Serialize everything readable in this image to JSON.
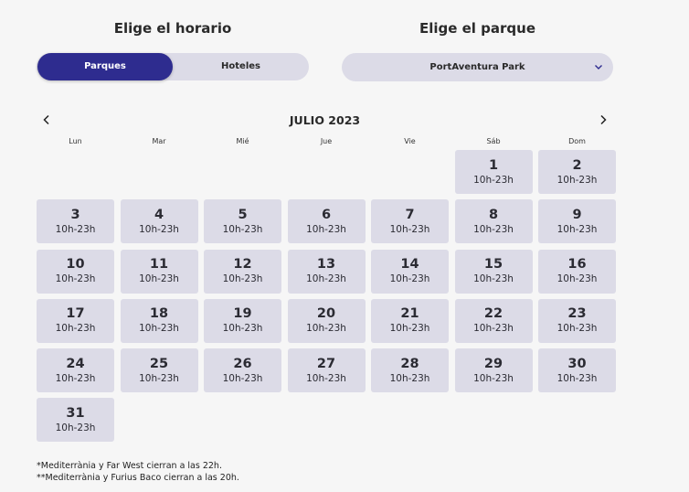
{
  "schedule_heading": "Elige el horario",
  "park_heading": "Elige el parque",
  "toggle": {
    "parques": "Parques",
    "hoteles": "Hoteles",
    "active": "parques"
  },
  "park_select": {
    "value": "PortAventura Park"
  },
  "colors": {
    "accent": "#2e2c8f",
    "cell": "#dcdbe7",
    "background": "#f6f6f6"
  },
  "calendar": {
    "month": "JULIO 2023",
    "weekdays": [
      "Lun",
      "Mar",
      "Mié",
      "Jue",
      "Vie",
      "Sáb",
      "Dom"
    ],
    "first_weekday_index": 5,
    "days": [
      {
        "day": "1",
        "hours": "10h-23h"
      },
      {
        "day": "2",
        "hours": "10h-23h"
      },
      {
        "day": "3",
        "hours": "10h-23h"
      },
      {
        "day": "4",
        "hours": "10h-23h"
      },
      {
        "day": "5",
        "hours": "10h-23h"
      },
      {
        "day": "6",
        "hours": "10h-23h"
      },
      {
        "day": "7",
        "hours": "10h-23h"
      },
      {
        "day": "8",
        "hours": "10h-23h"
      },
      {
        "day": "9",
        "hours": "10h-23h"
      },
      {
        "day": "10",
        "hours": "10h-23h"
      },
      {
        "day": "11",
        "hours": "10h-23h"
      },
      {
        "day": "12",
        "hours": "10h-23h"
      },
      {
        "day": "13",
        "hours": "10h-23h"
      },
      {
        "day": "14",
        "hours": "10h-23h"
      },
      {
        "day": "15",
        "hours": "10h-23h"
      },
      {
        "day": "16",
        "hours": "10h-23h"
      },
      {
        "day": "17",
        "hours": "10h-23h"
      },
      {
        "day": "18",
        "hours": "10h-23h"
      },
      {
        "day": "19",
        "hours": "10h-23h"
      },
      {
        "day": "20",
        "hours": "10h-23h"
      },
      {
        "day": "21",
        "hours": "10h-23h"
      },
      {
        "day": "22",
        "hours": "10h-23h"
      },
      {
        "day": "23",
        "hours": "10h-23h"
      },
      {
        "day": "24",
        "hours": "10h-23h"
      },
      {
        "day": "25",
        "hours": "10h-23h"
      },
      {
        "day": "26",
        "hours": "10h-23h"
      },
      {
        "day": "27",
        "hours": "10h-23h"
      },
      {
        "day": "28",
        "hours": "10h-23h"
      },
      {
        "day": "29",
        "hours": "10h-23h"
      },
      {
        "day": "30",
        "hours": "10h-23h"
      },
      {
        "day": "31",
        "hours": "10h-23h"
      }
    ]
  },
  "notes": [
    "*Mediterrània y Far West cierran a las 22h.",
    "**Mediterrània y Furius Baco cierran a las 20h."
  ],
  "icons": {
    "prev": "chevron-left-icon",
    "next": "chevron-right-icon",
    "select": "chevron-down-icon"
  }
}
